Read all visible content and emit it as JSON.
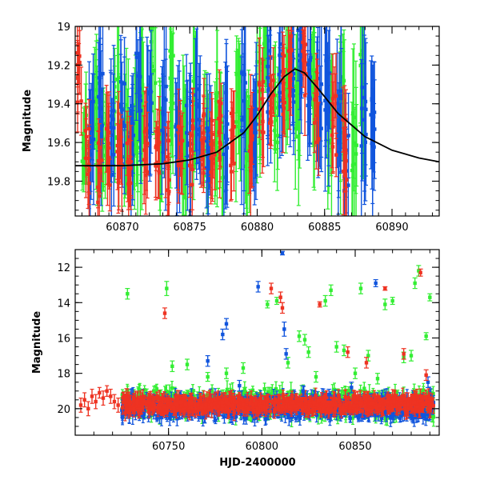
{
  "colors": {
    "g_band": "#33ee33",
    "b_band": "#1155dd",
    "r_band": "#ee3322",
    "model": "#000000"
  },
  "chart_data": [
    {
      "type": "scatter",
      "panel": "top",
      "xlabel": "",
      "ylabel": "Magnitude",
      "xlim": [
        60866.5,
        60893.5
      ],
      "ylim": [
        19.98,
        19.0
      ],
      "y_inverted": true,
      "x_ticks": [
        60870,
        60875,
        60880,
        60885,
        60890
      ],
      "y_ticks": [
        19,
        19.2,
        19.4,
        19.6,
        19.8
      ],
      "x_tick_labels": [
        "60870",
        "60875",
        "60880",
        "60885",
        "60890"
      ],
      "y_tick_labels": [
        "19",
        "19.2",
        "19.4",
        "19.6",
        "19.8"
      ],
      "grid": false,
      "legend": "none",
      "model_curve": {
        "x": [
          60866.5,
          60870,
          60873,
          60875,
          60877,
          60879,
          60880,
          60881,
          60882,
          60882.8,
          60883.5,
          60884.5,
          60886,
          60888,
          60890,
          60892,
          60893.5
        ],
        "y": [
          19.72,
          19.72,
          19.71,
          19.69,
          19.65,
          19.55,
          19.46,
          19.35,
          19.26,
          19.22,
          19.24,
          19.32,
          19.45,
          19.57,
          19.64,
          19.68,
          19.7
        ]
      },
      "series": [
        {
          "color_key": "g_band",
          "points": [
            {
              "x": 60867.2,
              "y": 19.55,
              "err": 0.18
            },
            {
              "x": 60868.1,
              "y": 19.45,
              "err": 0.25
            },
            {
              "x": 60868.6,
              "y": 19.62,
              "err": 0.2
            },
            {
              "x": 60869.6,
              "y": 19.4,
              "err": 0.3
            },
            {
              "x": 60870.3,
              "y": 19.58,
              "err": 0.22
            },
            {
              "x": 60871.0,
              "y": 19.5,
              "err": 0.28
            },
            {
              "x": 60871.4,
              "y": 19.35,
              "err": 0.35
            },
            {
              "x": 60872.3,
              "y": 19.15,
              "err": 0.25
            },
            {
              "x": 60872.9,
              "y": 19.6,
              "err": 0.2
            },
            {
              "x": 60873.6,
              "y": 19.3,
              "err": 0.3
            },
            {
              "x": 60874.6,
              "y": 19.55,
              "err": 0.25
            },
            {
              "x": 60875.3,
              "y": 19.45,
              "err": 0.3
            },
            {
              "x": 60876.2,
              "y": 19.6,
              "err": 0.25
            },
            {
              "x": 60876.9,
              "y": 19.5,
              "err": 0.28
            },
            {
              "x": 60877.4,
              "y": 19.62,
              "err": 0.22
            },
            {
              "x": 60878.6,
              "y": 19.4,
              "err": 0.3
            },
            {
              "x": 60879.3,
              "y": 19.55,
              "err": 0.25
            },
            {
              "x": 60880.1,
              "y": 19.35,
              "err": 0.3
            },
            {
              "x": 60880.6,
              "y": 19.05,
              "err": 0.2
            },
            {
              "x": 60881.4,
              "y": 19.5,
              "err": 0.25
            },
            {
              "x": 60882.2,
              "y": 19.2,
              "err": 0.25
            },
            {
              "x": 60883.0,
              "y": 19.4,
              "err": 0.28
            },
            {
              "x": 60884.2,
              "y": 19.3,
              "err": 0.3
            },
            {
              "x": 60885.4,
              "y": 19.5,
              "err": 0.28
            },
            {
              "x": 60886.3,
              "y": 19.4,
              "err": 0.3
            },
            {
              "x": 60887.2,
              "y": 19.6,
              "err": 0.3
            },
            {
              "x": 60887.8,
              "y": 19.3,
              "err": 0.35
            }
          ]
        },
        {
          "color_key": "b_band",
          "points": [
            {
              "x": 60867.7,
              "y": 19.5,
              "err": 0.25
            },
            {
              "x": 60868.4,
              "y": 19.4,
              "err": 0.3
            },
            {
              "x": 60869.3,
              "y": 19.6,
              "err": 0.25
            },
            {
              "x": 60870.0,
              "y": 19.45,
              "err": 0.3
            },
            {
              "x": 60870.7,
              "y": 19.55,
              "err": 0.25
            },
            {
              "x": 60871.2,
              "y": 19.3,
              "err": 0.3
            },
            {
              "x": 60872.0,
              "y": 19.5,
              "err": 0.25
            },
            {
              "x": 60873.1,
              "y": 19.4,
              "err": 0.3
            },
            {
              "x": 60874.1,
              "y": 19.6,
              "err": 0.25
            },
            {
              "x": 60874.9,
              "y": 19.55,
              "err": 0.28
            },
            {
              "x": 60875.6,
              "y": 19.45,
              "err": 0.3
            },
            {
              "x": 60876.4,
              "y": 19.62,
              "err": 0.22
            },
            {
              "x": 60877.7,
              "y": 19.5,
              "err": 0.28
            },
            {
              "x": 60879.0,
              "y": 19.4,
              "err": 0.3
            },
            {
              "x": 60879.8,
              "y": 19.55,
              "err": 0.25
            },
            {
              "x": 60880.9,
              "y": 19.3,
              "err": 0.3
            },
            {
              "x": 60881.7,
              "y": 19.25,
              "err": 0.28
            },
            {
              "x": 60882.6,
              "y": 19.22,
              "err": 0.25
            },
            {
              "x": 60883.2,
              "y": 19.15,
              "err": 0.25
            },
            {
              "x": 60883.8,
              "y": 19.3,
              "err": 0.28
            },
            {
              "x": 60884.6,
              "y": 19.4,
              "err": 0.3
            },
            {
              "x": 60885.2,
              "y": 19.35,
              "err": 0.3
            },
            {
              "x": 60886.1,
              "y": 19.5,
              "err": 0.3
            },
            {
              "x": 60886.6,
              "y": 19.7,
              "err": 0.2
            },
            {
              "x": 60887.9,
              "y": 19.45,
              "err": 0.35
            },
            {
              "x": 60888.6,
              "y": 19.55,
              "err": 0.35
            }
          ]
        },
        {
          "color_key": "r_band",
          "points": [
            {
              "x": 60866.8,
              "y": 19.3,
              "err": 0.15
            },
            {
              "x": 60867.4,
              "y": 19.65,
              "err": 0.18
            },
            {
              "x": 60868.3,
              "y": 19.75,
              "err": 0.15
            },
            {
              "x": 60868.9,
              "y": 19.7,
              "err": 0.18
            },
            {
              "x": 60869.8,
              "y": 19.65,
              "err": 0.18
            },
            {
              "x": 60870.5,
              "y": 19.7,
              "err": 0.15
            },
            {
              "x": 60871.7,
              "y": 19.65,
              "err": 0.18
            },
            {
              "x": 60872.6,
              "y": 19.6,
              "err": 0.15
            },
            {
              "x": 60873.3,
              "y": 19.72,
              "err": 0.15
            },
            {
              "x": 60874.3,
              "y": 19.68,
              "err": 0.15
            },
            {
              "x": 60875.1,
              "y": 19.65,
              "err": 0.15
            },
            {
              "x": 60875.9,
              "y": 19.62,
              "err": 0.15
            },
            {
              "x": 60876.7,
              "y": 19.6,
              "err": 0.15
            },
            {
              "x": 60877.2,
              "y": 19.55,
              "err": 0.15
            },
            {
              "x": 60878.2,
              "y": 19.6,
              "err": 0.15
            },
            {
              "x": 60879.5,
              "y": 19.58,
              "err": 0.18
            },
            {
              "x": 60880.3,
              "y": 19.4,
              "err": 0.18
            },
            {
              "x": 60881.1,
              "y": 19.35,
              "err": 0.15
            },
            {
              "x": 60881.9,
              "y": 19.3,
              "err": 0.15
            },
            {
              "x": 60882.4,
              "y": 19.2,
              "err": 0.15
            },
            {
              "x": 60883.5,
              "y": 19.25,
              "err": 0.15
            },
            {
              "x": 60884.4,
              "y": 19.45,
              "err": 0.15
            },
            {
              "x": 60885.7,
              "y": 19.5,
              "err": 0.18
            },
            {
              "x": 60886.5,
              "y": 19.65,
              "err": 0.18
            }
          ]
        }
      ]
    },
    {
      "type": "scatter",
      "panel": "bottom",
      "xlabel": "HJD-2400000",
      "ylabel": "Magnitude",
      "xlim": [
        60700,
        60895
      ],
      "ylim": [
        21.5,
        11.0
      ],
      "y_inverted": true,
      "x_ticks": [
        60750,
        60800,
        60850
      ],
      "y_ticks": [
        12,
        14,
        16,
        18,
        20
      ],
      "x_tick_labels": [
        "60750",
        "60800",
        "60850"
      ],
      "y_tick_labels": [
        "12",
        "14",
        "16",
        "18",
        "20"
      ],
      "grid": false,
      "legend": "none",
      "series": [
        {
          "color_key": "g_band",
          "points": [
            {
              "x": 60728,
              "y": 13.5,
              "err": 0.3
            },
            {
              "x": 60749,
              "y": 13.2,
              "err": 0.4
            },
            {
              "x": 60752,
              "y": 17.6,
              "err": 0.3
            },
            {
              "x": 60760,
              "y": 17.5,
              "err": 0.3
            },
            {
              "x": 60771,
              "y": 18.2,
              "err": 0.25
            },
            {
              "x": 60781,
              "y": 18.0,
              "err": 0.3
            },
            {
              "x": 60790,
              "y": 17.7,
              "err": 0.3
            },
            {
              "x": 60803,
              "y": 14.1,
              "err": 0.2
            },
            {
              "x": 60808,
              "y": 13.9,
              "err": 0.2
            },
            {
              "x": 60814,
              "y": 17.4,
              "err": 0.3
            },
            {
              "x": 60820,
              "y": 15.9,
              "err": 0.3
            },
            {
              "x": 60823,
              "y": 16.1,
              "err": 0.3
            },
            {
              "x": 60825,
              "y": 16.8,
              "err": 0.3
            },
            {
              "x": 60829,
              "y": 18.2,
              "err": 0.3
            },
            {
              "x": 60834,
              "y": 13.9,
              "err": 0.3
            },
            {
              "x": 60837,
              "y": 13.3,
              "err": 0.3
            },
            {
              "x": 60840,
              "y": 16.5,
              "err": 0.3
            },
            {
              "x": 60844,
              "y": 16.7,
              "err": 0.3
            },
            {
              "x": 60850,
              "y": 18.0,
              "err": 0.3
            },
            {
              "x": 60853,
              "y": 13.2,
              "err": 0.3
            },
            {
              "x": 60857,
              "y": 17.0,
              "err": 0.3
            },
            {
              "x": 60862,
              "y": 18.3,
              "err": 0.3
            },
            {
              "x": 60866,
              "y": 14.1,
              "err": 0.3
            },
            {
              "x": 60870,
              "y": 13.9,
              "err": 0.2
            },
            {
              "x": 60876,
              "y": 17.1,
              "err": 0.3
            },
            {
              "x": 60880,
              "y": 17.0,
              "err": 0.3
            },
            {
              "x": 60882,
              "y": 12.9,
              "err": 0.3
            },
            {
              "x": 60884,
              "y": 12.2,
              "err": 0.3
            },
            {
              "x": 60888,
              "y": 15.9,
              "err": 0.2
            },
            {
              "x": 60890,
              "y": 13.7,
              "err": 0.2
            }
          ]
        },
        {
          "color_key": "b_band",
          "points": [
            {
              "x": 60771,
              "y": 17.3,
              "err": 0.3
            },
            {
              "x": 60779,
              "y": 15.8,
              "err": 0.3
            },
            {
              "x": 60781,
              "y": 15.2,
              "err": 0.3
            },
            {
              "x": 60788,
              "y": 18.7,
              "err": 0.3
            },
            {
              "x": 60798,
              "y": 13.1,
              "err": 0.3
            },
            {
              "x": 60811,
              "y": 11.2,
              "err": 0.1
            },
            {
              "x": 60812,
              "y": 15.5,
              "err": 0.4
            },
            {
              "x": 60813,
              "y": 16.9,
              "err": 0.3
            },
            {
              "x": 60822,
              "y": 19.0,
              "err": 0.3
            },
            {
              "x": 60836,
              "y": 19.2,
              "err": 0.3
            },
            {
              "x": 60848,
              "y": 18.8,
              "err": 0.3
            },
            {
              "x": 60861,
              "y": 12.9,
              "err": 0.2
            },
            {
              "x": 60889,
              "y": 18.5,
              "err": 0.3
            }
          ]
        },
        {
          "color_key": "r_band",
          "points": [
            {
              "x": 60748,
              "y": 14.6,
              "err": 0.3
            },
            {
              "x": 60805,
              "y": 13.2,
              "err": 0.3
            },
            {
              "x": 60810,
              "y": 13.7,
              "err": 0.3
            },
            {
              "x": 60811,
              "y": 14.3,
              "err": 0.3
            },
            {
              "x": 60831,
              "y": 14.1,
              "err": 0.15
            },
            {
              "x": 60846,
              "y": 16.8,
              "err": 0.3
            },
            {
              "x": 60856,
              "y": 17.4,
              "err": 0.3
            },
            {
              "x": 60866,
              "y": 13.2,
              "err": 0.1
            },
            {
              "x": 60876,
              "y": 16.9,
              "err": 0.3
            },
            {
              "x": 60885,
              "y": 12.3,
              "err": 0.2
            },
            {
              "x": 60888,
              "y": 18.1,
              "err": 0.3
            }
          ]
        }
      ],
      "dense_bands": [
        {
          "color_key": "g_band",
          "x_range": [
            60725,
            60892
          ],
          "y_center": 19.7,
          "y_spread": 0.9,
          "count": 700,
          "err": 0.35
        },
        {
          "color_key": "b_band",
          "x_range": [
            60725,
            60892
          ],
          "y_center": 19.9,
          "y_spread": 0.8,
          "count": 650,
          "err": 0.35
        },
        {
          "color_key": "r_band",
          "x_range": [
            60725,
            60892
          ],
          "y_center": 19.75,
          "y_spread": 0.55,
          "count": 800,
          "err": 0.3
        }
      ],
      "early_r_points": [
        {
          "x": 60703,
          "y": 19.8,
          "err": 0.4
        },
        {
          "x": 60705,
          "y": 19.5,
          "err": 0.4
        },
        {
          "x": 60707,
          "y": 20.0,
          "err": 0.4
        },
        {
          "x": 60709,
          "y": 19.3,
          "err": 0.4
        },
        {
          "x": 60711,
          "y": 19.6,
          "err": 0.4
        },
        {
          "x": 60713,
          "y": 19.1,
          "err": 0.3
        },
        {
          "x": 60715,
          "y": 19.4,
          "err": 0.4
        },
        {
          "x": 60717,
          "y": 19.0,
          "err": 0.3
        },
        {
          "x": 60719,
          "y": 19.3,
          "err": 0.4
        },
        {
          "x": 60721,
          "y": 19.6,
          "err": 0.4
        },
        {
          "x": 60723,
          "y": 19.8,
          "err": 0.4
        }
      ]
    }
  ]
}
